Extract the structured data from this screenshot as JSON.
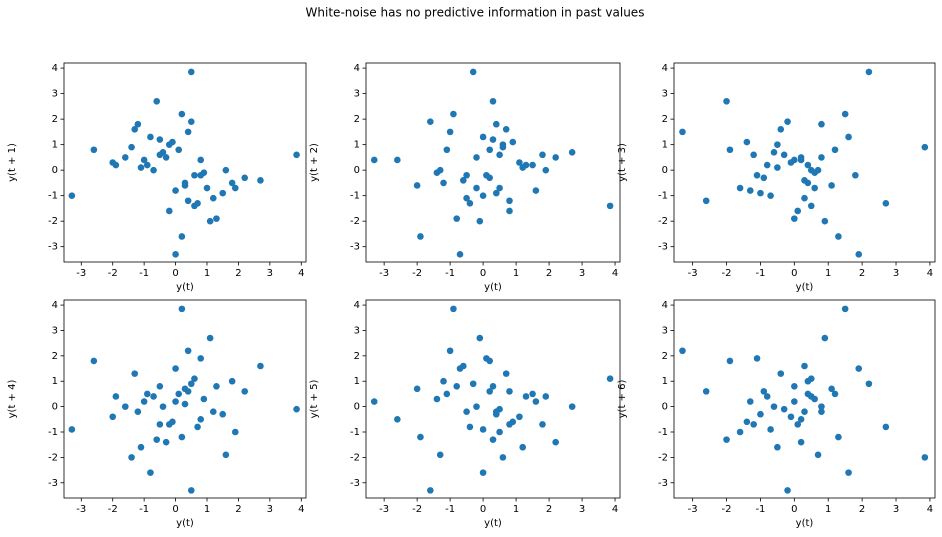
{
  "title": "White-noise has no predictive information in past values",
  "chart_data": [
    {
      "type": "scatter",
      "xlabel": "y(t)",
      "ylabel": "y(t + 1)",
      "color": "#1f77b4",
      "xlim": [
        -3.55,
        4.15
      ],
      "ylim": [
        -3.6,
        4.2
      ],
      "xticks": [
        -3,
        -2,
        -1,
        0,
        1,
        2,
        3,
        4
      ],
      "yticks": [
        -3,
        -2,
        -1,
        0,
        1,
        2,
        3,
        4
      ],
      "x": [
        0.3,
        -0.5,
        1.2,
        -1.1,
        0.1,
        0.8,
        -0.2,
        -1.6,
        0.5,
        1.9,
        -0.7,
        0.0,
        -3.3,
        -1.0,
        0.4,
        1.5,
        -0.9,
        0.2,
        2.2,
        -0.3,
        0.5,
        3.85,
        0.6,
        -1.4,
        0.9,
        -0.1,
        1.1,
        -2.0,
        0.3,
        -0.6,
        2.7,
        -0.4,
        0.7,
        -1.3,
        1.6,
        0.0,
        -0.8,
        1.3,
        -1.9,
        0.2,
        -2.6,
        0.8,
        0.4,
        -1.2,
        1.8,
        -0.5,
        0.6,
        -0.2,
        1.0
      ],
      "y": [
        -0.5,
        1.2,
        -1.1,
        0.1,
        0.8,
        -0.2,
        -1.6,
        0.5,
        1.9,
        -0.7,
        0.0,
        -3.3,
        -1.0,
        0.4,
        1.5,
        -0.9,
        0.2,
        2.2,
        -0.3,
        0.5,
        3.85,
        0.6,
        -1.4,
        0.9,
        -0.1,
        1.1,
        -2.0,
        0.3,
        -0.6,
        2.7,
        -0.4,
        0.7,
        -1.3,
        1.6,
        0.0,
        -0.8,
        1.3,
        -1.9,
        0.2,
        -2.6,
        0.8,
        0.4,
        -1.2,
        1.8,
        -0.5,
        0.6,
        -0.2,
        1.0,
        -0.7
      ]
    },
    {
      "type": "scatter",
      "xlabel": "y(t)",
      "ylabel": "y(t + 2)",
      "color": "#1f77b4",
      "xlim": [
        -3.55,
        4.15
      ],
      "ylim": [
        -3.6,
        4.2
      ],
      "xticks": [
        -3,
        -2,
        -1,
        0,
        1,
        2,
        3,
        4
      ],
      "yticks": [
        -3,
        -2,
        -1,
        0,
        1,
        2,
        3,
        4
      ],
      "x": [
        0.3,
        -0.5,
        1.2,
        -1.1,
        0.1,
        0.8,
        -0.2,
        -1.6,
        0.5,
        1.9,
        -0.7,
        0.0,
        -3.3,
        -1.0,
        0.4,
        1.5,
        -0.9,
        0.2,
        2.2,
        -0.3,
        0.5,
        3.85,
        0.6,
        -1.4,
        0.9,
        -0.1,
        1.1,
        -2.0,
        0.3,
        -0.6,
        2.7,
        -0.4,
        0.7,
        -1.3,
        1.6,
        0.0,
        -0.8,
        1.3,
        -1.9,
        0.2,
        -2.6,
        0.8,
        0.4,
        -1.2,
        1.8,
        -0.5,
        0.6,
        -0.2
      ],
      "y": [
        1.2,
        -1.1,
        0.1,
        0.8,
        -0.2,
        -1.6,
        0.5,
        1.9,
        -0.7,
        0.0,
        -3.3,
        -1.0,
        0.4,
        1.5,
        -0.9,
        0.2,
        2.2,
        -0.3,
        0.5,
        3.85,
        0.6,
        -1.4,
        0.9,
        -0.1,
        1.1,
        -2.0,
        0.3,
        -0.6,
        2.7,
        -0.4,
        0.7,
        -1.3,
        1.6,
        0.0,
        -0.8,
        1.3,
        -1.9,
        0.2,
        -2.6,
        0.8,
        0.4,
        -1.2,
        1.8,
        -0.5,
        0.6,
        -0.2,
        1.0,
        -0.7
      ]
    },
    {
      "type": "scatter",
      "xlabel": "y(t)",
      "ylabel": "y(t + 3)",
      "color": "#1f77b4",
      "xlim": [
        -3.55,
        4.15
      ],
      "ylim": [
        -3.6,
        4.2
      ],
      "xticks": [
        -3,
        -2,
        -1,
        0,
        1,
        2,
        3,
        4
      ],
      "yticks": [
        -3,
        -2,
        -1,
        0,
        1,
        2,
        3,
        4
      ],
      "x": [
        0.3,
        -0.5,
        1.2,
        -1.1,
        0.1,
        0.8,
        -0.2,
        -1.6,
        0.5,
        1.9,
        -0.7,
        0.0,
        -3.3,
        -1.0,
        0.4,
        1.5,
        -0.9,
        0.2,
        2.2,
        -0.3,
        0.5,
        3.85,
        0.6,
        -1.4,
        0.9,
        -0.1,
        1.1,
        -2.0,
        0.3,
        -0.6,
        2.7,
        -0.4,
        0.7,
        -1.3,
        1.6,
        0.0,
        -0.8,
        1.3,
        -1.9,
        0.2,
        -2.6,
        0.8,
        0.4,
        -1.2,
        1.8,
        -0.5,
        0.6
      ],
      "y": [
        -1.1,
        0.1,
        0.8,
        -0.2,
        -1.6,
        0.5,
        1.9,
        -0.7,
        0.0,
        -3.3,
        -1.0,
        0.4,
        1.5,
        -0.9,
        0.2,
        2.2,
        -0.3,
        0.5,
        3.85,
        0.6,
        -1.4,
        0.9,
        -0.1,
        1.1,
        -2.0,
        0.3,
        -0.6,
        2.7,
        -0.4,
        0.7,
        -1.3,
        1.6,
        0.0,
        -0.8,
        1.3,
        -1.9,
        0.2,
        -2.6,
        0.8,
        0.4,
        -1.2,
        1.8,
        -0.5,
        0.6,
        -0.2,
        1.0,
        -0.7
      ]
    },
    {
      "type": "scatter",
      "xlabel": "y(t)",
      "ylabel": "y(t + 4)",
      "color": "#1f77b4",
      "xlim": [
        -3.55,
        4.15
      ],
      "ylim": [
        -3.6,
        4.2
      ],
      "xticks": [
        -3,
        -2,
        -1,
        0,
        1,
        2,
        3,
        4
      ],
      "yticks": [
        -3,
        -2,
        -1,
        0,
        1,
        2,
        3,
        4
      ],
      "x": [
        0.3,
        -0.5,
        1.2,
        -1.1,
        0.1,
        0.8,
        -0.2,
        -1.6,
        0.5,
        1.9,
        -0.7,
        0.0,
        -3.3,
        -1.0,
        0.4,
        1.5,
        -0.9,
        0.2,
        2.2,
        -0.3,
        0.5,
        3.85,
        0.6,
        -1.4,
        0.9,
        -0.1,
        1.1,
        -2.0,
        0.3,
        -0.6,
        2.7,
        -0.4,
        0.7,
        -1.3,
        1.6,
        0.0,
        -0.8,
        1.3,
        -1.9,
        0.2,
        -2.6,
        0.8,
        0.4,
        -1.2,
        1.8,
        -0.5
      ],
      "y": [
        0.1,
        0.8,
        -0.2,
        -1.6,
        0.5,
        1.9,
        -0.7,
        0.0,
        -3.3,
        -1.0,
        0.4,
        1.5,
        -0.9,
        0.2,
        2.2,
        -0.3,
        0.5,
        3.85,
        0.6,
        -1.4,
        0.9,
        -0.1,
        1.1,
        -2.0,
        0.3,
        -0.6,
        2.7,
        -0.4,
        0.7,
        -1.3,
        1.6,
        0.0,
        -0.8,
        1.3,
        -1.9,
        0.2,
        -2.6,
        0.8,
        0.4,
        -1.2,
        1.8,
        -0.5,
        0.6,
        -0.2,
        1.0,
        -0.7
      ]
    },
    {
      "type": "scatter",
      "xlabel": "y(t)",
      "ylabel": "y(t + 5)",
      "color": "#1f77b4",
      "xlim": [
        -3.55,
        4.15
      ],
      "ylim": [
        -3.6,
        4.2
      ],
      "xticks": [
        -3,
        -2,
        -1,
        0,
        1,
        2,
        3,
        4
      ],
      "yticks": [
        -3,
        -2,
        -1,
        0,
        1,
        2,
        3,
        4
      ],
      "x": [
        0.3,
        -0.5,
        1.2,
        -1.1,
        0.1,
        0.8,
        -0.2,
        -1.6,
        0.5,
        1.9,
        -0.7,
        0.0,
        -3.3,
        -1.0,
        0.4,
        1.5,
        -0.9,
        0.2,
        2.2,
        -0.3,
        0.5,
        3.85,
        0.6,
        -1.4,
        0.9,
        -0.1,
        1.1,
        -2.0,
        0.3,
        -0.6,
        2.7,
        -0.4,
        0.7,
        -1.3,
        1.6,
        0.0,
        -0.8,
        1.3,
        -1.9,
        0.2,
        -2.6,
        0.8,
        0.4,
        -1.2,
        1.8
      ],
      "y": [
        0.8,
        -0.2,
        -1.6,
        0.5,
        1.9,
        -0.7,
        0.0,
        -3.3,
        -1.0,
        0.4,
        1.5,
        -0.9,
        0.2,
        2.2,
        -0.3,
        0.5,
        3.85,
        0.6,
        -1.4,
        0.9,
        -0.1,
        1.1,
        -2.0,
        0.3,
        -0.6,
        2.7,
        -0.4,
        0.7,
        -1.3,
        1.6,
        0.0,
        -0.8,
        1.3,
        -1.9,
        0.2,
        -2.6,
        0.8,
        0.4,
        -1.2,
        1.8,
        -0.5,
        0.6,
        -0.2,
        1.0,
        -0.7
      ]
    },
    {
      "type": "scatter",
      "xlabel": "y(t)",
      "ylabel": "y(t + 6)",
      "color": "#1f77b4",
      "xlim": [
        -3.55,
        4.15
      ],
      "ylim": [
        -3.6,
        4.2
      ],
      "xticks": [
        -3,
        -2,
        -1,
        0,
        1,
        2,
        3,
        4
      ],
      "yticks": [
        -3,
        -2,
        -1,
        0,
        1,
        2,
        3,
        4
      ],
      "x": [
        0.3,
        -0.5,
        1.2,
        -1.1,
        0.1,
        0.8,
        -0.2,
        -1.6,
        0.5,
        1.9,
        -0.7,
        0.0,
        -3.3,
        -1.0,
        0.4,
        1.5,
        -0.9,
        0.2,
        2.2,
        -0.3,
        0.5,
        3.85,
        0.6,
        -1.4,
        0.9,
        -0.1,
        1.1,
        -2.0,
        0.3,
        -0.6,
        2.7,
        -0.4,
        0.7,
        -1.3,
        1.6,
        0.0,
        -0.8,
        1.3,
        -1.9,
        0.2,
        -2.6,
        0.8,
        0.4,
        -1.2
      ],
      "y": [
        -0.2,
        -1.6,
        0.5,
        1.9,
        -0.7,
        0.0,
        -3.3,
        -1.0,
        0.4,
        1.5,
        -0.9,
        0.2,
        2.2,
        -0.3,
        0.5,
        3.85,
        0.6,
        -1.4,
        0.9,
        -0.1,
        1.1,
        -2.0,
        0.3,
        -0.6,
        2.7,
        -0.4,
        0.7,
        -1.3,
        1.6,
        0.0,
        -0.8,
        1.3,
        -1.9,
        0.2,
        -2.6,
        0.8,
        0.4,
        -1.2,
        1.8,
        -0.5,
        0.6,
        -0.2,
        1.0,
        -0.7
      ]
    }
  ]
}
